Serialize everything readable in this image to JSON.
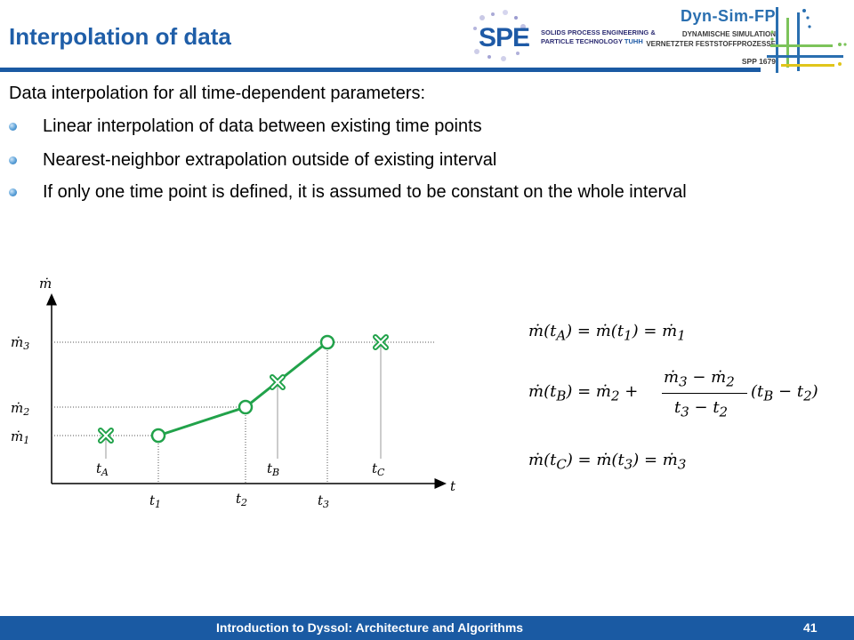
{
  "title": "Interpolation of data",
  "logos": {
    "spe_mark": "SPE",
    "spe_line1": "SOLIDS PROCESS ENGINEERING &",
    "spe_line2": "PARTICLE TECHNOLOGY",
    "spe_tuhh": "TUHH",
    "dyn_title": "Dyn-Sim-FP",
    "dyn_line1": "DYNAMISCHE SIMULATION",
    "dyn_line2": "VERNETZTER FESTSTOFFPROZESSE",
    "dyn_spp": "SPP 1679"
  },
  "intro": "Data interpolation for all time-dependent parameters:",
  "bullets": [
    "Linear interpolation of data between existing time points",
    "Nearest-neighbor extrapolation outside of existing interval",
    "If only one time point is defined, it is assumed to be constant on the whole interval"
  ],
  "diagram": {
    "y_axis_label": "ṁ",
    "x_axis_label": "t",
    "y_levels": [
      "ṁ",
      "ṁ",
      "ṁ"
    ],
    "points": [
      {
        "t": "t",
        "m": "ṁ",
        "sub": "1"
      },
      {
        "t": "t",
        "m": "ṁ",
        "sub": "2"
      },
      {
        "t": "t",
        "m": "ṁ",
        "sub": "3"
      }
    ],
    "queries": [
      {
        "label": "t",
        "sub": "A"
      },
      {
        "label": "t",
        "sub": "B"
      },
      {
        "label": "t",
        "sub": "C"
      }
    ],
    "colors": {
      "line": "#21a24a",
      "marker_fill": "#ffffff",
      "grid": "#555555"
    }
  },
  "equations": {
    "eq1": "ṁ(t_A) = ṁ(t_1) = ṁ_1",
    "eq2_lhs": "ṁ(t_B) = ṁ_2 +",
    "eq2_num": "ṁ_3 − ṁ_2",
    "eq2_den": "t_3 − t_2",
    "eq2_rhs": "(t_B − t_2)",
    "eq3": "ṁ(t_C) = ṁ(t_3) = ṁ_3"
  },
  "footer": {
    "text": "Introduction to Dyssol: Architecture and Algorithms",
    "page": "41"
  },
  "colors": {
    "accent": "#1a5aa3",
    "title": "#1f5ea8"
  }
}
